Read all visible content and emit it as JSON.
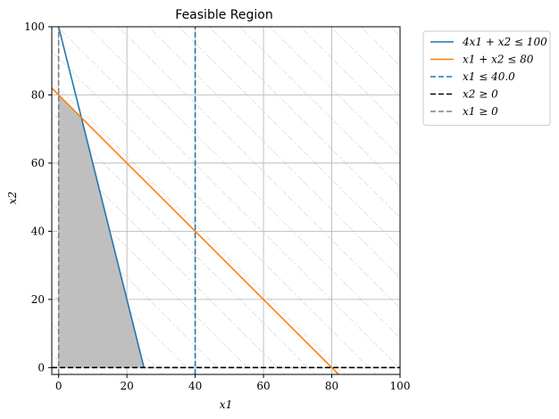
{
  "chart_data": {
    "type": "line",
    "title": "Feasible Region",
    "xlabel": "x1",
    "ylabel": "x2",
    "xlim": [
      -2,
      100
    ],
    "ylim": [
      -2,
      100
    ],
    "x_ticks": [
      0,
      20,
      40,
      60,
      80,
      100
    ],
    "y_ticks": [
      0,
      20,
      40,
      60,
      80,
      100
    ],
    "grid": true,
    "legend_position": "outside-top-right",
    "series": [
      {
        "name": "4x1 + x2 ≤ 100",
        "color": "#1f77b4",
        "style": "solid",
        "points": [
          [
            0,
            100
          ],
          [
            25,
            0
          ]
        ]
      },
      {
        "name": "x1 + x2 ≤ 80",
        "color": "#ff7f0e",
        "style": "solid",
        "points": [
          [
            -2,
            82
          ],
          [
            82,
            -2
          ]
        ]
      },
      {
        "name": "x1 ≤ 40.0",
        "color": "#1f77b4",
        "style": "dashed",
        "points": [
          [
            40,
            -2
          ],
          [
            40,
            100
          ]
        ]
      },
      {
        "name": "x2 ≥ 0",
        "color": "#000000",
        "style": "dashed",
        "points": [
          [
            -2,
            0
          ],
          [
            100,
            0
          ]
        ]
      },
      {
        "name": "x1 ≥ 0",
        "color": "#808080",
        "style": "dashed",
        "points": [
          [
            0,
            -2
          ],
          [
            0,
            100
          ]
        ]
      }
    ],
    "feasible_region": {
      "fill": "#bfbfbf",
      "vertices": [
        [
          0,
          0
        ],
        [
          0,
          80
        ],
        [
          6.6667,
          73.3333
        ],
        [
          25,
          0
        ]
      ]
    },
    "hatch_color": "#d9d9d9"
  }
}
